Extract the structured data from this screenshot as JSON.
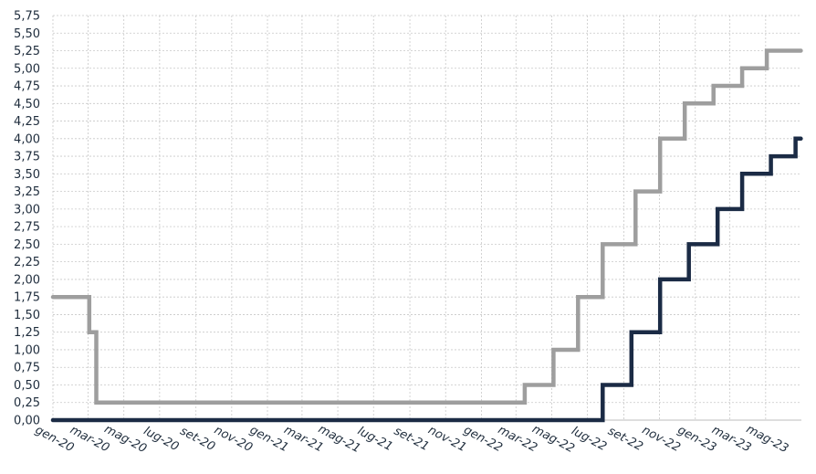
{
  "chart_data": {
    "type": "line",
    "step": "after",
    "title": "",
    "xlabel": "",
    "ylabel": "",
    "ylim": [
      0,
      5.75
    ],
    "y_step": 0.25,
    "x_range": [
      "2020-01-01",
      "2023-07-01"
    ],
    "grid": true,
    "legend": "none",
    "ytick_labels": [
      "0,00",
      "0,25",
      "0,50",
      "0,75",
      "1,00",
      "1,25",
      "1,50",
      "1,75",
      "2,00",
      "2,25",
      "2,50",
      "2,75",
      "3,00",
      "3,25",
      "3,50",
      "3,75",
      "4,00",
      "4,25",
      "4,50",
      "4,75",
      "5,00",
      "5,25",
      "5,50",
      "5,75"
    ],
    "xtick_labels": [
      {
        "date": "2020-01-01",
        "label": "gen-20"
      },
      {
        "date": "2020-03-01",
        "label": "mar-20"
      },
      {
        "date": "2020-05-01",
        "label": "mag-20"
      },
      {
        "date": "2020-07-01",
        "label": "lug-20"
      },
      {
        "date": "2020-09-01",
        "label": "set-20"
      },
      {
        "date": "2020-11-01",
        "label": "nov-20"
      },
      {
        "date": "2021-01-01",
        "label": "gen-21"
      },
      {
        "date": "2021-03-01",
        "label": "mar-21"
      },
      {
        "date": "2021-05-01",
        "label": "mag-21"
      },
      {
        "date": "2021-07-01",
        "label": "lug-21"
      },
      {
        "date": "2021-09-01",
        "label": "set-21"
      },
      {
        "date": "2021-11-01",
        "label": "nov-21"
      },
      {
        "date": "2022-01-01",
        "label": "gen-22"
      },
      {
        "date": "2022-03-01",
        "label": "mar-22"
      },
      {
        "date": "2022-05-01",
        "label": "mag-22"
      },
      {
        "date": "2022-07-01",
        "label": "lug-22"
      },
      {
        "date": "2022-09-01",
        "label": "set-22"
      },
      {
        "date": "2022-11-01",
        "label": "nov-22"
      },
      {
        "date": "2023-01-01",
        "label": "gen-23"
      },
      {
        "date": "2023-03-01",
        "label": "mar-23"
      },
      {
        "date": "2023-05-01",
        "label": "mag-23"
      }
    ],
    "series": [
      {
        "color": "#9e9e9e",
        "points": [
          [
            "2020-01-01",
            1.75
          ],
          [
            "2020-03-03",
            1.25
          ],
          [
            "2020-03-15",
            0.25
          ],
          [
            "2022-03-16",
            0.5
          ],
          [
            "2022-05-04",
            1.0
          ],
          [
            "2022-06-15",
            1.75
          ],
          [
            "2022-07-27",
            2.5
          ],
          [
            "2022-09-21",
            3.25
          ],
          [
            "2022-11-02",
            4.0
          ],
          [
            "2022-12-14",
            4.5
          ],
          [
            "2023-02-01",
            4.75
          ],
          [
            "2023-03-22",
            5.0
          ],
          [
            "2023-05-03",
            5.25
          ],
          [
            "2023-06-30",
            5.25
          ]
        ]
      },
      {
        "color": "#1b2b45",
        "points": [
          [
            "2020-01-01",
            0.0
          ],
          [
            "2022-07-27",
            0.5
          ],
          [
            "2022-09-14",
            1.25
          ],
          [
            "2022-11-02",
            2.0
          ],
          [
            "2022-12-21",
            2.5
          ],
          [
            "2023-02-08",
            3.0
          ],
          [
            "2023-03-22",
            3.5
          ],
          [
            "2023-05-10",
            3.75
          ],
          [
            "2023-06-21",
            4.0
          ],
          [
            "2023-06-30",
            4.0
          ]
        ]
      }
    ]
  }
}
